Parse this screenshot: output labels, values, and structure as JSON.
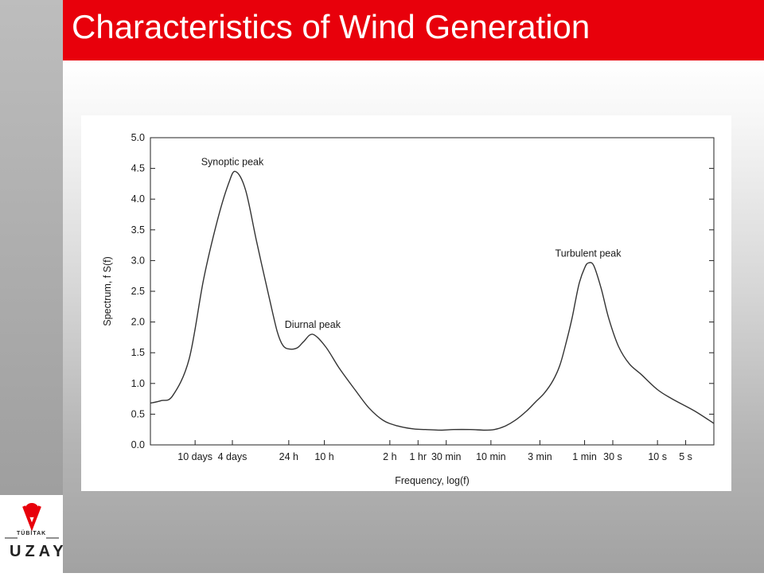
{
  "slide": {
    "title": "Characteristics of Wind Generation",
    "title_bar_color": "#e8000b"
  },
  "logo": {
    "org_small": "TÜBİTAK",
    "org_main": "UZAY",
    "emblem_icon": "tubitak-emblem",
    "emblem_color": "#e8000b"
  },
  "chart_data": {
    "type": "line",
    "title": "",
    "xlabel": "Frequency, log(f)",
    "ylabel": "Spectrum, f S(f)",
    "xscale": "log",
    "xlim_seconds": [
      2592000,
      2.5
    ],
    "ylim": [
      0.0,
      5.0
    ],
    "yticks": [
      0.0,
      0.5,
      1.0,
      1.5,
      2.0,
      2.5,
      3.0,
      3.5,
      4.0,
      4.5,
      5.0
    ],
    "ytick_labels": [
      "0.0",
      "0.5",
      "1.0",
      "1.5",
      "2.0",
      "2.5",
      "3.0",
      "3.5",
      "4.0",
      "4.5",
      "5.0"
    ],
    "xticks": [
      {
        "label": "10 days",
        "period_s": 864000
      },
      {
        "label": "4 days",
        "period_s": 345600
      },
      {
        "label": "24 h",
        "period_s": 86400
      },
      {
        "label": "10 h",
        "period_s": 36000
      },
      {
        "label": "2 h",
        "period_s": 7200
      },
      {
        "label": "1 hr",
        "period_s": 3600
      },
      {
        "label": "30 min",
        "period_s": 1800
      },
      {
        "label": "10 min",
        "period_s": 600
      },
      {
        "label": "3 min",
        "period_s": 180
      },
      {
        "label": "1 min",
        "period_s": 60
      },
      {
        "label": "30 s",
        "period_s": 30
      },
      {
        "label": "10 s",
        "period_s": 10
      },
      {
        "label": "5 s",
        "period_s": 5
      }
    ],
    "series": [
      {
        "x_period_s": [
          2592000,
          2000000,
          1500000,
          1000000,
          700000,
          500000,
          380000,
          320000,
          250000,
          190000,
          140000,
          115000,
          100000,
          85000,
          70000,
          60000,
          48000,
          35000,
          25000,
          17000,
          12000,
          8500,
          6000,
          4000,
          3000,
          2000,
          1500,
          1000,
          700,
          550,
          430,
          330,
          250,
          200,
          160,
          130,
          110,
          95,
          82,
          75,
          68,
          60,
          55,
          48,
          40,
          33,
          26,
          20,
          15,
          10,
          7,
          4,
          2.5
        ],
        "values": [
          0.68,
          0.72,
          0.8,
          1.4,
          2.7,
          3.65,
          4.25,
          4.45,
          4.15,
          3.3,
          2.4,
          1.85,
          1.62,
          1.56,
          1.58,
          1.68,
          1.8,
          1.6,
          1.25,
          0.9,
          0.6,
          0.4,
          0.31,
          0.26,
          0.25,
          0.24,
          0.25,
          0.25,
          0.24,
          0.25,
          0.3,
          0.4,
          0.55,
          0.7,
          0.85,
          1.05,
          1.3,
          1.65,
          2.05,
          2.35,
          2.65,
          2.88,
          2.96,
          2.92,
          2.55,
          2.05,
          1.6,
          1.32,
          1.15,
          0.9,
          0.75,
          0.55,
          0.35
        ]
      }
    ],
    "annotations": [
      {
        "text": "Synoptic peak",
        "period_s": 345600,
        "y": 4.45
      },
      {
        "text": "Diurnal peak",
        "period_s": 48000,
        "y": 1.8
      },
      {
        "text": "Turbulent peak",
        "period_s": 55,
        "y": 2.96
      }
    ],
    "grid": false,
    "legend": "none"
  }
}
